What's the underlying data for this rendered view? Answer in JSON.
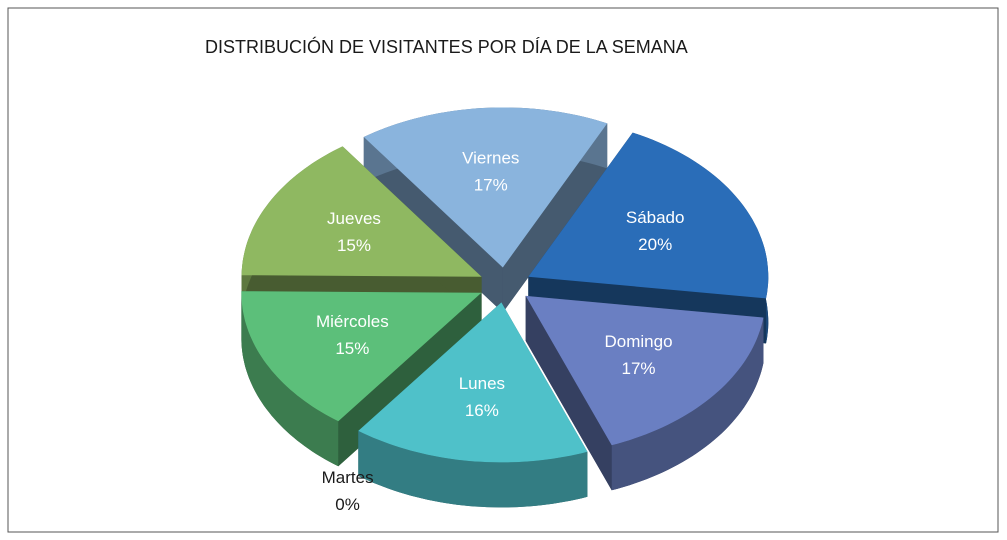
{
  "chart_data": {
    "type": "pie3d",
    "title": "DISTRIBUCIÓN DE VISITANTES POR DÍA DE LA SEMANA",
    "categories": [
      "Lunes",
      "Martes",
      "Miércoles",
      "Jueves",
      "Viernes",
      "Sábado",
      "Domingo"
    ],
    "values": [
      16,
      0,
      15,
      15,
      17,
      20,
      17
    ],
    "value_labels": [
      "16%",
      "0%",
      "15%",
      "15%",
      "17%",
      "20%",
      "17%"
    ],
    "colors": [
      "#4fc1c9",
      "#9aa5b0",
      "#5cbf7a",
      "#8fb861",
      "#8ab4dd",
      "#2a6db8",
      "#6a7fc2"
    ]
  }
}
